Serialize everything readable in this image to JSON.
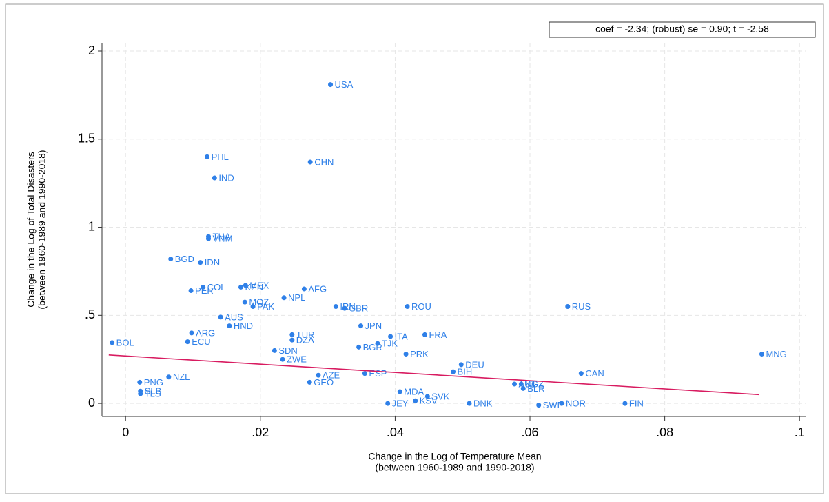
{
  "chart_data": {
    "type": "scatter",
    "annotation": "coef = -2.34; (robust) se = 0.90; t = -2.58",
    "xlabel": [
      "Change in the Log of Temperature Mean",
      "(between 1960-1989 and 1990-2018)"
    ],
    "ylabel": [
      "Change in the Log of Total Disasters",
      "(between 1960-1989 and 1990-2018)"
    ],
    "xlim": [
      -0.0035,
      0.101
    ],
    "ylim": [
      -0.074,
      2.047
    ],
    "xticks": [
      0,
      {
        "value": 0.02,
        "label": ".02"
      },
      {
        "value": 0.04,
        "label": ".04"
      },
      {
        "value": 0.06,
        "label": ".06"
      },
      {
        "value": 0.08,
        "label": ".08"
      },
      {
        "value": 0.1,
        "label": ".1"
      }
    ],
    "yticks": [
      0,
      {
        "value": 0.5,
        "label": ".5"
      },
      1,
      1.5,
      2
    ],
    "grid": true,
    "color": "#2f80e8",
    "labels": [
      "USA",
      "PHL",
      "CHN",
      "IND",
      "THA",
      "VNM",
      "BGD",
      "IDN",
      "COL",
      "PER",
      "KEN",
      "MEX",
      "AFG",
      "MOZ",
      "NPL",
      "PAK",
      "IRN",
      "GBR",
      "ROU",
      "RUS",
      "AUS",
      "JPN",
      "HND",
      "ITA",
      "FRA",
      "TUR",
      "DZA",
      "BGR",
      "TJK",
      "BOL",
      "MNG",
      "PRK",
      "DEU",
      "BIH",
      "CAN",
      "SDN",
      "ZWE",
      "ESP",
      "AZE",
      "NZL",
      "PNG",
      "GEO",
      "AUT",
      "KGZ",
      "BLR",
      "MDA",
      "FIN",
      "SWE",
      "NOR",
      "JEY",
      "SVK",
      "KSV",
      "DNK",
      "SLB",
      "TLS",
      "ECU",
      "ARG"
    ],
    "x": [
      0.0304,
      0.0121,
      0.0274,
      0.0132,
      0.0123,
      0.0123,
      0.0067,
      0.0111,
      0.0115,
      0.0097,
      0.0171,
      0.0178,
      0.0265,
      0.0177,
      0.0235,
      0.0189,
      0.0312,
      0.0325,
      0.0418,
      0.0656,
      0.0141,
      0.0349,
      0.0154,
      0.0393,
      0.0444,
      0.0247,
      0.0247,
      0.0346,
      0.0374,
      -0.002,
      0.0944,
      0.0416,
      0.0498,
      0.0486,
      0.0676,
      0.0221,
      0.0233,
      0.0355,
      0.0286,
      0.0064,
      0.0021,
      0.0273,
      0.0577,
      0.0587,
      0.059,
      0.0407,
      0.0741,
      0.0613,
      0.0647,
      0.0389,
      0.0448,
      0.043,
      0.051,
      0.0022,
      0.0022,
      0.0092,
      0.0098
    ],
    "y": [
      1.81,
      1.4,
      1.37,
      1.28,
      0.947,
      0.935,
      0.82,
      0.8,
      0.66,
      0.64,
      0.66,
      0.67,
      0.65,
      0.575,
      0.6,
      0.55,
      0.55,
      0.54,
      0.55,
      0.55,
      0.49,
      0.44,
      0.44,
      0.38,
      0.39,
      0.39,
      0.36,
      0.32,
      0.34,
      0.345,
      0.28,
      0.28,
      0.22,
      0.18,
      0.17,
      0.3,
      0.25,
      0.17,
      0.16,
      0.15,
      0.12,
      0.12,
      0.11,
      0.11,
      0.085,
      0.067,
      0,
      -0.01,
      0,
      0,
      0.04,
      0.015,
      0,
      0.07,
      0.055,
      0.35,
      0.4
    ],
    "fit_line": {
      "color": "#d81b60",
      "x": [
        -0.0025,
        0.094
      ],
      "y": [
        0.275,
        0.05
      ]
    }
  }
}
